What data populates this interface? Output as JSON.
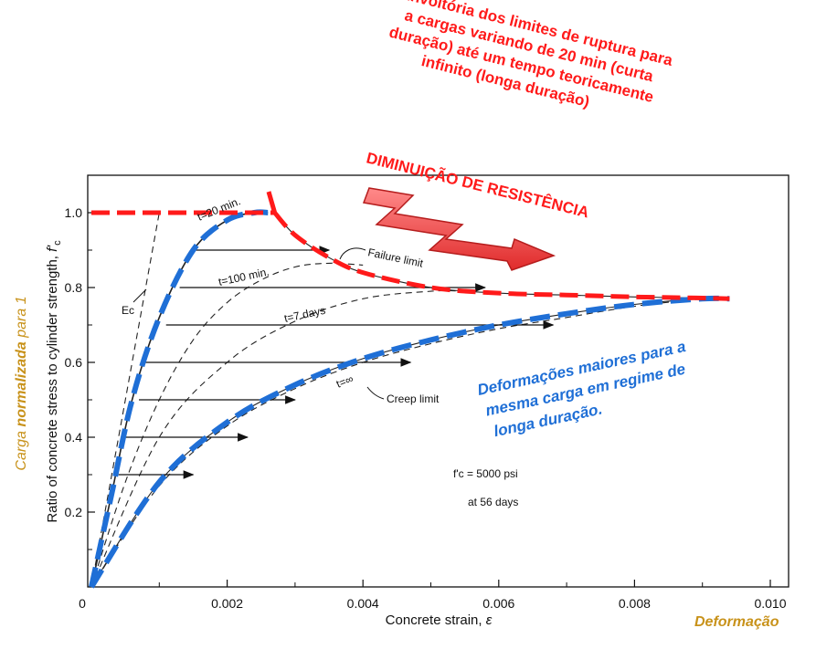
{
  "chart_data": {
    "type": "line",
    "xlabel": "Concrete strain, ε",
    "ylabel": "Ratio of concrete stress to cylinder strength, f'c",
    "xlim": [
      0,
      0.01
    ],
    "ylim": [
      0,
      1.1
    ],
    "x_ticks": [
      "0",
      "0.002",
      "0.004",
      "0.006",
      "0.008",
      "0.010"
    ],
    "y_ticks": [
      "0.2",
      "0.4",
      "0.6",
      "0.8",
      "1.0"
    ],
    "ylabel_main": "Ratio of concrete stress to cylinder strength, ",
    "ylabel_sym": "f'",
    "ylabel_sub": "c",
    "xlabel_main": "Concrete strain, ",
    "xlabel_sym": "ε",
    "grid": false,
    "series": [
      {
        "name": "t=20 min.",
        "style": "short-term",
        "x": [
          0,
          0.0003,
          0.0006,
          0.001,
          0.0015,
          0.002,
          0.0024,
          0.0026
        ],
        "y": [
          0,
          0.25,
          0.5,
          0.72,
          0.9,
          0.98,
          1.0,
          1.0
        ]
      },
      {
        "name": "t=100 min.",
        "style": "dashed",
        "x": [
          0,
          0.0005,
          0.001,
          0.0015,
          0.002,
          0.0025,
          0.003,
          0.0035,
          0.004
        ],
        "y": [
          0,
          0.28,
          0.5,
          0.66,
          0.76,
          0.82,
          0.855,
          0.865,
          0.86
        ]
      },
      {
        "name": "t=7 days",
        "style": "dashed",
        "x": [
          0,
          0.001,
          0.002,
          0.003,
          0.004,
          0.005,
          0.0055
        ],
        "y": [
          0,
          0.4,
          0.6,
          0.71,
          0.77,
          0.79,
          0.79
        ]
      },
      {
        "name": "t=∞",
        "style": "dashed",
        "x": [
          0,
          0.001,
          0.002,
          0.003,
          0.004,
          0.005,
          0.006,
          0.007,
          0.008,
          0.009
        ],
        "y": [
          0,
          0.27,
          0.43,
          0.53,
          0.6,
          0.65,
          0.69,
          0.72,
          0.75,
          0.77
        ]
      },
      {
        "name": "Failure limit",
        "style": "solid",
        "x": [
          0.0027,
          0.003,
          0.0035,
          0.004,
          0.005,
          0.006,
          0.007,
          0.008,
          0.009,
          0.0094
        ],
        "y": [
          1.0,
          0.94,
          0.88,
          0.84,
          0.8,
          0.785,
          0.78,
          0.775,
          0.772,
          0.77
        ]
      },
      {
        "name": "Creep limit",
        "style": "solid",
        "x": [
          0,
          0.001,
          0.002,
          0.003,
          0.004,
          0.005,
          0.006,
          0.007,
          0.008,
          0.009,
          0.0094
        ],
        "y": [
          0,
          0.28,
          0.44,
          0.54,
          0.61,
          0.66,
          0.7,
          0.73,
          0.755,
          0.77,
          0.77
        ]
      },
      {
        "name": "Ec",
        "style": "dashed",
        "x": [
          0,
          0.0005,
          0.001
        ],
        "y": [
          0,
          0.5,
          1.0
        ]
      }
    ],
    "creep_arrows": [
      {
        "y": 0.3,
        "x_from": 0.0004,
        "x_to": 0.0015
      },
      {
        "y": 0.4,
        "x_from": 0.0005,
        "x_to": 0.0023
      },
      {
        "y": 0.5,
        "x_from": 0.0007,
        "x_to": 0.003
      },
      {
        "y": 0.6,
        "x_from": 0.0008,
        "x_to": 0.0047
      },
      {
        "y": 0.7,
        "x_from": 0.0011,
        "x_to": 0.0068
      },
      {
        "y": 0.8,
        "x_from": 0.0013,
        "x_to": 0.0058
      },
      {
        "y": 0.9,
        "x_from": 0.0015,
        "x_to": 0.0035
      }
    ],
    "overlays": {
      "blue_dashed": "Creep limit and short-term curve (blue)",
      "red_dashed": "Failure limit envelope (red)"
    },
    "colors": {
      "red": "#ff1a1a",
      "blue": "#1f6fd6",
      "gold": "#c8921a",
      "ink": "#111111"
    }
  },
  "labels": {
    "t20": "t=20 min.",
    "t100": "t=100 min.",
    "t7": "t=7 days",
    "tinf": "t=∞",
    "failure": "Failure limit",
    "creep": "Creep limit",
    "ec": "Ec",
    "fc_line1": "f'c = 5000 psi",
    "fc_line2": "at 56 days",
    "origin": "0"
  },
  "annotations": {
    "red_lines": [
      "Envoltória dos limites de ruptura para",
      "a cargas variando de 20 min (curta",
      "duração) até um tempo teoricamente",
      "infinito (longa duração)"
    ],
    "diminuicao": "DIMINUIÇÃO DE RESISTÊNCIA",
    "blue_lines": [
      "Deformações maiores para a",
      "mesma carga em regime de",
      "longa duração."
    ],
    "y_side_1": "Carga ",
    "y_side_2": "normalizada",
    "y_side_3": " para 1",
    "x_side": "Deformação"
  }
}
